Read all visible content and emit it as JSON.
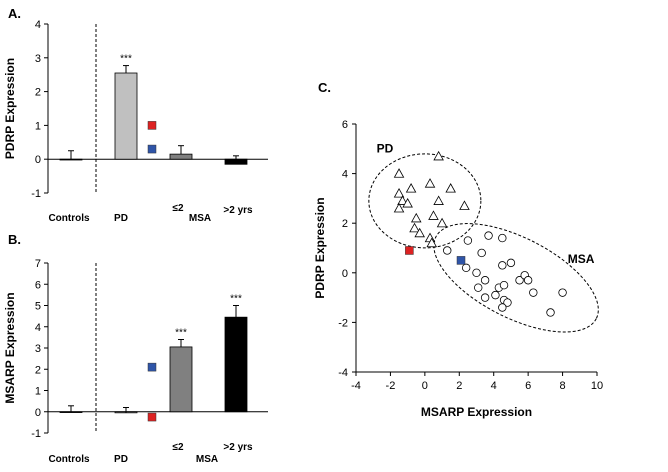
{
  "chart_data": [
    {
      "panel_label": "A.",
      "type": "bar",
      "ylabel": "PDRP Expression",
      "ylim": [
        -1,
        4
      ],
      "yticks": [
        "-1",
        "0",
        "1",
        "2",
        "3",
        "4"
      ],
      "categories": [
        "Controls",
        "PD",
        "≤2",
        ">2  yrs"
      ],
      "values": [
        0.0,
        2.55,
        0.15,
        -0.15
      ],
      "errors": [
        0.25,
        0.22,
        0.25,
        0.25
      ],
      "colors": [
        "#ffffff",
        "#c0c0c0",
        "#808080",
        "#000000"
      ],
      "group_label": "MSA",
      "significance": [
        {
          "category": 1,
          "label": "***"
        }
      ],
      "markers": [
        {
          "value": 1.0,
          "color": "#dd2222"
        },
        {
          "value": 0.3,
          "color": "#2f55a8"
        }
      ]
    },
    {
      "panel_label": "B.",
      "type": "bar",
      "ylabel": "MSARP Expression",
      "ylim": [
        -1,
        7
      ],
      "yticks": [
        "-1",
        "0",
        "1",
        "2",
        "3",
        "4",
        "5",
        "6",
        "7"
      ],
      "categories": [
        "Controls",
        "PD",
        "≤2",
        ">2  yrs"
      ],
      "values": [
        0.0,
        -0.05,
        3.05,
        4.45
      ],
      "errors": [
        0.28,
        0.25,
        0.35,
        0.55
      ],
      "colors": [
        "#ffffff",
        "#c0c0c0",
        "#808080",
        "#000000"
      ],
      "group_label": "MSA",
      "significance": [
        {
          "category": 2,
          "label": "***"
        },
        {
          "category": 3,
          "label": "***"
        }
      ],
      "markers": [
        {
          "value": 2.1,
          "color": "#2f55a8"
        },
        {
          "value": -0.25,
          "color": "#dd2222"
        }
      ]
    },
    {
      "panel_label": "C.",
      "type": "scatter",
      "xlabel": "MSARP Expression",
      "ylabel": "PDRP Expression",
      "xlim": [
        -4,
        10
      ],
      "ylim": [
        -4,
        6
      ],
      "xticks": [
        "-4",
        "-2",
        "0",
        "2",
        "4",
        "6",
        "8",
        "10"
      ],
      "yticks": [
        "-4",
        "-2",
        "0",
        "2",
        "4",
        "6"
      ],
      "groups": [
        {
          "label": "PD",
          "marker": "triangle"
        },
        {
          "label": "MSA",
          "marker": "circle"
        }
      ],
      "series": [
        {
          "name": "PD",
          "marker": "triangle",
          "points": [
            [
              -1.5,
              4.0
            ],
            [
              0.8,
              4.7
            ],
            [
              -1.5,
              3.2
            ],
            [
              -0.8,
              3.4
            ],
            [
              0.3,
              3.6
            ],
            [
              1.5,
              3.4
            ],
            [
              -1.3,
              2.9
            ],
            [
              -1.0,
              2.8
            ],
            [
              0.8,
              2.9
            ],
            [
              2.3,
              2.7
            ],
            [
              -1.5,
              2.6
            ],
            [
              -0.5,
              2.2
            ],
            [
              0.5,
              2.3
            ],
            [
              1.0,
              2.0
            ],
            [
              -0.6,
              1.8
            ],
            [
              -0.3,
              1.6
            ],
            [
              0.3,
              1.4
            ],
            [
              0.4,
              1.2
            ]
          ]
        },
        {
          "name": "MSA",
          "marker": "circle",
          "points": [
            [
              1.3,
              0.9
            ],
            [
              2.5,
              1.3
            ],
            [
              3.7,
              1.5
            ],
            [
              4.5,
              1.4
            ],
            [
              3.3,
              0.8
            ],
            [
              2.4,
              0.2
            ],
            [
              4.5,
              0.3
            ],
            [
              5.0,
              0.4
            ],
            [
              3.0,
              0.0
            ],
            [
              3.5,
              -0.3
            ],
            [
              5.5,
              -0.3
            ],
            [
              5.8,
              -0.1
            ],
            [
              6.0,
              -0.3
            ],
            [
              4.3,
              -0.6
            ],
            [
              4.6,
              -0.5
            ],
            [
              3.5,
              -1.0
            ],
            [
              4.6,
              -1.1
            ],
            [
              4.8,
              -1.2
            ],
            [
              4.5,
              -1.4
            ],
            [
              6.3,
              -0.8
            ],
            [
              7.3,
              -1.6
            ],
            [
              8.0,
              -0.8
            ],
            [
              3.1,
              -0.6
            ],
            [
              4.1,
              -0.9
            ]
          ]
        }
      ],
      "highlight_points": [
        {
          "x": -0.9,
          "y": 0.9,
          "color": "#dd2222"
        },
        {
          "x": 2.1,
          "y": 0.5,
          "color": "#2f55a8"
        }
      ]
    }
  ]
}
